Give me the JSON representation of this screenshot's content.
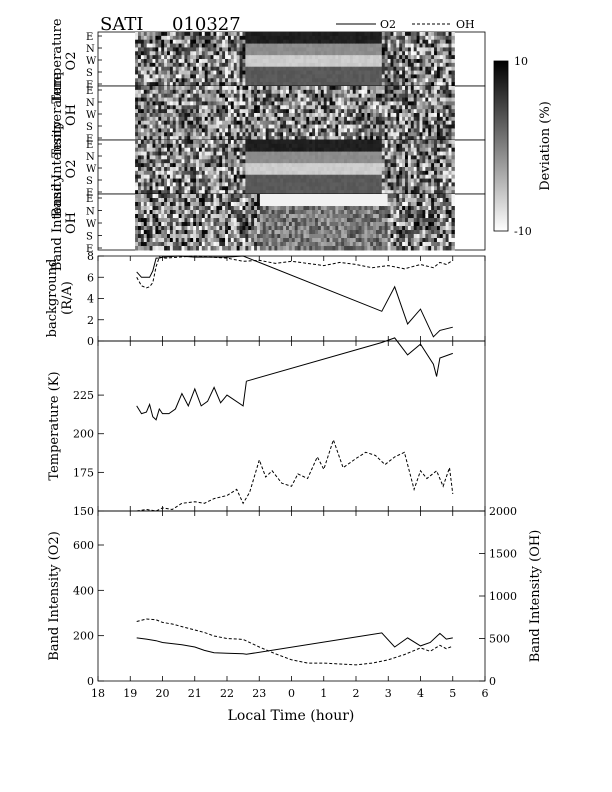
{
  "header": {
    "title": "SATI",
    "date_code": "010327"
  },
  "legend": [
    {
      "label": "O2",
      "style": "solid"
    },
    {
      "label": "OH",
      "style": "dashed"
    }
  ],
  "keogram": {
    "direction_ticks": [
      "E",
      "N",
      "W",
      "S",
      "E"
    ],
    "panels": [
      {
        "ylabel_line1": "Temperature",
        "ylabel_line2": "O2"
      },
      {
        "ylabel_line1": "Temperature",
        "ylabel_line2": "OH"
      },
      {
        "ylabel_line1": "Band Intensity",
        "ylabel_line2": "O2"
      },
      {
        "ylabel_line1": "Band Intensity",
        "ylabel_line2": "OH"
      }
    ],
    "colorbar": {
      "label": "Deviation (%)",
      "max_label": "10",
      "min_label": "-10",
      "range": [
        -10,
        10
      ]
    }
  },
  "x_axis": {
    "label": "Local Time (hour)",
    "ticks": [
      "18",
      "19",
      "20",
      "21",
      "22",
      "23",
      "0",
      "1",
      "2",
      "3",
      "4",
      "5",
      "6"
    ]
  },
  "chart_data": [
    {
      "type": "line",
      "ylabel_line1": "background",
      "ylabel_line2": "(R/A)",
      "ylim": [
        0,
        8
      ],
      "yticks": [
        "0",
        "2",
        "4",
        "6",
        "8"
      ],
      "series": [
        {
          "name": "O2",
          "style": "solid",
          "x": [
            19.2,
            19.35,
            19.5,
            19.6,
            19.7,
            19.8,
            19.9,
            20.0,
            20.5,
            21.0,
            21.5,
            22.0,
            22.5,
            26.8,
            27.2,
            27.6,
            28.0,
            28.4,
            28.6,
            29.0
          ],
          "y": [
            6.5,
            6.0,
            6.0,
            6.0,
            6.6,
            7.8,
            7.8,
            7.9,
            8.0,
            7.9,
            7.9,
            7.9,
            8.0,
            2.8,
            5.1,
            1.6,
            3.0,
            0.4,
            1.0,
            1.3
          ]
        },
        {
          "name": "OH",
          "style": "dashed",
          "x": [
            19.2,
            19.35,
            19.5,
            19.6,
            19.7,
            19.8,
            19.9,
            20.1,
            20.5,
            21.0,
            21.5,
            22.0,
            22.5,
            23.0,
            23.5,
            24.0,
            24.5,
            25.0,
            25.5,
            26.0,
            26.5,
            27.0,
            27.5,
            28.0,
            28.4,
            28.6,
            28.8,
            29.0
          ],
          "y": [
            6.0,
            5.2,
            5.0,
            5.1,
            5.5,
            7.0,
            7.9,
            7.8,
            7.9,
            8.0,
            7.9,
            7.8,
            7.5,
            7.6,
            7.3,
            7.5,
            7.3,
            7.1,
            7.4,
            7.2,
            6.9,
            7.1,
            6.8,
            7.2,
            6.9,
            7.4,
            7.2,
            7.6
          ]
        }
      ]
    },
    {
      "type": "line",
      "ylabel": "Temperature (K)",
      "ylim": [
        150,
        260
      ],
      "yticks": [
        "150",
        "175",
        "200",
        "225"
      ],
      "series": [
        {
          "name": "O2",
          "style": "solid",
          "x": [
            19.2,
            19.35,
            19.5,
            19.6,
            19.7,
            19.8,
            19.9,
            20.0,
            20.2,
            20.4,
            20.6,
            20.8,
            21.0,
            21.2,
            21.4,
            21.6,
            21.8,
            22.0,
            22.5,
            22.6
          ],
          "y": [
            218,
            213,
            214,
            219,
            211,
            209,
            216,
            213,
            213,
            216,
            226,
            218,
            229,
            218,
            221,
            230,
            220,
            225,
            218,
            234
          ]
        },
        {
          "name": "O2",
          "style": "solid",
          "x": [
            22.6,
            26.8,
            27.2,
            27.6,
            28.0,
            28.4,
            28.5,
            28.6,
            29.0
          ],
          "y": [
            234,
            259,
            262,
            251,
            258,
            245,
            237,
            249,
            252
          ]
        },
        {
          "name": "OH",
          "style": "dashed",
          "x": [
            19.2,
            19.5,
            19.8,
            20.0,
            20.3,
            20.6,
            21.0,
            21.3,
            21.6,
            22.0,
            22.3,
            22.5,
            22.7,
            23.0,
            23.2,
            23.4,
            23.7,
            24.0,
            24.2,
            24.5,
            24.8,
            25.0,
            25.3,
            25.6,
            26.0,
            26.3,
            26.6,
            26.9,
            27.2,
            27.5,
            27.8,
            28.0,
            28.2,
            28.5,
            28.7,
            28.9,
            29.0
          ],
          "y": [
            150,
            151,
            150,
            152,
            151,
            155,
            156,
            155,
            158,
            160,
            164,
            155,
            162,
            183,
            172,
            176,
            168,
            166,
            174,
            171,
            185,
            177,
            196,
            178,
            184,
            188,
            186,
            180,
            185,
            188,
            164,
            176,
            171,
            176,
            166,
            178,
            161
          ]
        }
      ]
    },
    {
      "type": "line",
      "ylabel_left": "Band Intensity (O2)",
      "ylabel_right": "Band Intensity (OH)",
      "ylim_left": [
        0,
        750
      ],
      "ylim_right": [
        0,
        2000
      ],
      "yticks_left": [
        "0",
        "200",
        "400",
        "600"
      ],
      "yticks_right": [
        "0",
        "500",
        "1000",
        "1500",
        "2000"
      ],
      "series": [
        {
          "name": "O2",
          "style": "solid",
          "axis": "left",
          "x": [
            19.2,
            19.5,
            19.8,
            20.0,
            20.3,
            20.6,
            21.0,
            21.3,
            21.6,
            22.0,
            22.5,
            22.6,
            26.8,
            27.2,
            27.6,
            28.0,
            28.3,
            28.6,
            28.8,
            29.0
          ],
          "y": [
            190,
            185,
            178,
            170,
            165,
            160,
            150,
            135,
            125,
            122,
            120,
            118,
            212,
            150,
            190,
            155,
            170,
            210,
            185,
            190
          ]
        },
        {
          "name": "OH",
          "style": "dashed",
          "axis": "right",
          "x": [
            19.2,
            19.5,
            19.8,
            20.0,
            20.3,
            20.6,
            21.0,
            21.3,
            21.6,
            22.0,
            22.5,
            23.0,
            23.5,
            24.0,
            24.5,
            25.0,
            25.5,
            26.0,
            26.5,
            27.0,
            27.5,
            28.0,
            28.3,
            28.6,
            28.8,
            29.0
          ],
          "y": [
            700,
            730,
            720,
            690,
            670,
            640,
            600,
            570,
            530,
            500,
            490,
            400,
            320,
            250,
            210,
            210,
            200,
            190,
            210,
            250,
            310,
            390,
            350,
            420,
            380,
            410
          ]
        }
      ]
    }
  ]
}
